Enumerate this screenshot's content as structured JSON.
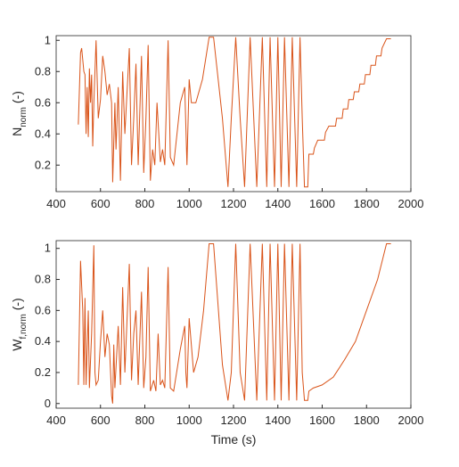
{
  "chart_data": [
    {
      "type": "line",
      "ylabel": {
        "main": "N",
        "sub": "norm",
        "suffix": " (-)"
      },
      "xlim": [
        400,
        2000
      ],
      "xticks": [
        400,
        600,
        800,
        1000,
        1200,
        1400,
        1600,
        1800,
        2000
      ],
      "ylim": [
        0.03,
        1.03
      ],
      "yticks": [
        0.2,
        0.4,
        0.6,
        0.8,
        1
      ],
      "color": "#d95319",
      "x": [
        500,
        510,
        515,
        525,
        530,
        535,
        540,
        545,
        550,
        555,
        560,
        565,
        570,
        580,
        590,
        600,
        610,
        620,
        630,
        640,
        650,
        655,
        665,
        670,
        680,
        690,
        700,
        710,
        730,
        740,
        750,
        760,
        770,
        785,
        795,
        805,
        815,
        825,
        835,
        845,
        855,
        870,
        880,
        890,
        905,
        915,
        930,
        960,
        980,
        985,
        990,
        1000,
        1010,
        1030,
        1060,
        1090,
        1110,
        1150,
        1175,
        1190,
        1210,
        1230,
        1250,
        1275,
        1305,
        1330,
        1350,
        1365,
        1385,
        1400,
        1415,
        1430,
        1450,
        1465,
        1485,
        1500,
        1510,
        1520,
        1535,
        1540,
        1560,
        1565,
        1580,
        1610,
        1615,
        1630,
        1660,
        1665,
        1690,
        1695,
        1715,
        1720,
        1740,
        1745,
        1765,
        1770,
        1790,
        1795,
        1815,
        1820,
        1840,
        1845,
        1865,
        1870,
        1890,
        1910
      ],
      "values": [
        0.46,
        0.92,
        0.95,
        0.8,
        0.78,
        0.4,
        0.7,
        0.38,
        0.82,
        0.6,
        0.78,
        0.32,
        0.6,
        1.0,
        0.5,
        0.62,
        0.9,
        0.8,
        0.65,
        0.72,
        0.6,
        0.09,
        0.6,
        0.3,
        0.7,
        0.1,
        0.8,
        0.4,
        0.95,
        0.2,
        0.5,
        0.85,
        0.2,
        0.9,
        0.15,
        0.5,
        0.97,
        0.1,
        0.3,
        0.2,
        0.6,
        0.22,
        0.3,
        0.2,
        1.0,
        0.25,
        0.2,
        0.6,
        0.7,
        0.45,
        0.2,
        0.75,
        0.6,
        0.6,
        0.75,
        1.02,
        1.02,
        0.5,
        0.06,
        0.5,
        1.02,
        0.5,
        0.06,
        1.02,
        0.06,
        1.02,
        0.06,
        1.02,
        0.06,
        1.02,
        0.06,
        1.02,
        0.06,
        1.02,
        0.06,
        1.02,
        0.5,
        0.06,
        0.06,
        0.27,
        0.27,
        0.31,
        0.36,
        0.36,
        0.41,
        0.45,
        0.45,
        0.5,
        0.5,
        0.56,
        0.56,
        0.62,
        0.62,
        0.67,
        0.67,
        0.72,
        0.72,
        0.78,
        0.78,
        0.84,
        0.84,
        0.9,
        0.9,
        0.95,
        1.01,
        1.01
      ]
    },
    {
      "type": "line",
      "ylabel": {
        "main": "W",
        "sub": "f,norm",
        "suffix": " (-)"
      },
      "xlabel": "Time (s)",
      "xlim": [
        400,
        2000
      ],
      "xticks": [
        400,
        600,
        800,
        1000,
        1200,
        1400,
        1600,
        1800,
        2000
      ],
      "ylim": [
        -0.03,
        1.05
      ],
      "yticks": [
        0,
        0.2,
        0.4,
        0.6,
        0.8,
        1
      ],
      "color": "#d95319",
      "x": [
        500,
        510,
        520,
        525,
        530,
        535,
        545,
        550,
        560,
        570,
        575,
        580,
        590,
        600,
        610,
        620,
        630,
        640,
        650,
        655,
        660,
        665,
        680,
        690,
        700,
        710,
        730,
        740,
        750,
        760,
        770,
        785,
        795,
        805,
        815,
        825,
        840,
        850,
        860,
        870,
        880,
        890,
        905,
        915,
        930,
        960,
        980,
        985,
        990,
        1000,
        1020,
        1040,
        1065,
        1090,
        1110,
        1150,
        1175,
        1190,
        1210,
        1230,
        1250,
        1275,
        1305,
        1330,
        1350,
        1365,
        1385,
        1400,
        1415,
        1430,
        1450,
        1465,
        1485,
        1500,
        1510,
        1520,
        1535,
        1540,
        1560,
        1600,
        1650,
        1700,
        1750,
        1800,
        1850,
        1890,
        1910
      ],
      "values": [
        0.12,
        0.92,
        0.6,
        0.12,
        0.68,
        0.12,
        0.6,
        0.1,
        0.45,
        1.02,
        0.2,
        0.12,
        0.15,
        0.4,
        0.6,
        0.3,
        0.45,
        0.38,
        0.05,
        0.0,
        0.38,
        0.1,
        0.5,
        0.12,
        0.75,
        0.2,
        0.9,
        0.15,
        0.45,
        0.6,
        0.12,
        0.72,
        0.1,
        0.3,
        0.88,
        0.08,
        0.15,
        0.08,
        0.45,
        0.12,
        0.15,
        0.1,
        0.88,
        0.1,
        0.08,
        0.35,
        0.5,
        0.2,
        0.1,
        0.55,
        0.2,
        0.3,
        0.6,
        1.03,
        1.03,
        0.25,
        0.02,
        0.2,
        1.03,
        0.2,
        0.02,
        1.03,
        0.02,
        1.03,
        0.02,
        1.03,
        0.02,
        1.03,
        0.02,
        1.03,
        0.02,
        1.03,
        0.02,
        1.03,
        0.2,
        0.02,
        0.02,
        0.08,
        0.1,
        0.12,
        0.17,
        0.28,
        0.4,
        0.6,
        0.8,
        1.03,
        1.03
      ]
    }
  ]
}
